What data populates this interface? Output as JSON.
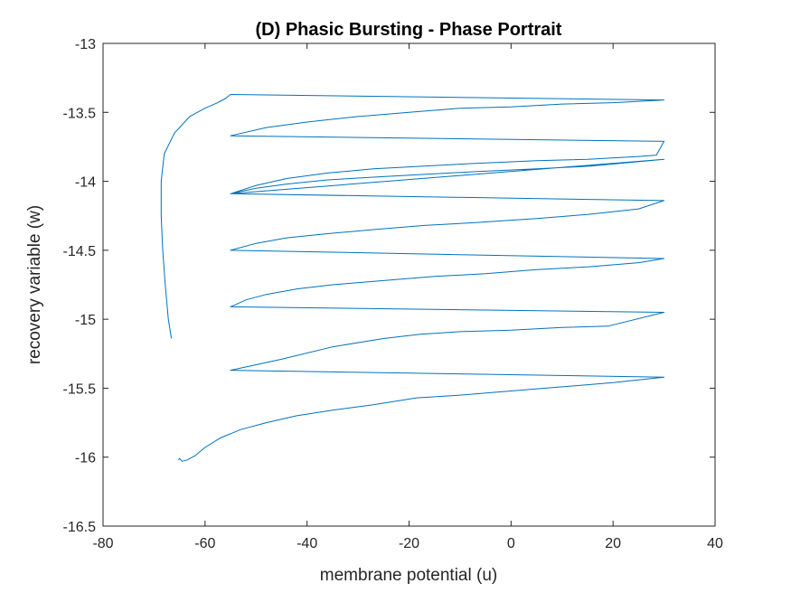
{
  "chart_data": {
    "type": "line",
    "title": "(D) Phasic Bursting - Phase Portrait",
    "xlabel": "membrane potential (u)",
    "ylabel": "recovery variable (w)",
    "xlim": [
      -80,
      40
    ],
    "ylim": [
      -16.5,
      -13
    ],
    "xticks": [
      -80,
      -60,
      -40,
      -20,
      0,
      20,
      40
    ],
    "yticks": [
      -13,
      -13.5,
      -14,
      -14.5,
      -15,
      -15.5,
      -16,
      -16.5
    ],
    "xtick_labels": [
      "-80",
      "-60",
      "-40",
      "-20",
      "0",
      "20",
      "40"
    ],
    "ytick_labels": [
      "-13",
      "-13.5",
      "-14",
      "-14.5",
      "-15",
      "-15.5",
      "-16",
      "-16.5"
    ],
    "grid": false,
    "line_color": "#0072BD",
    "series": [
      {
        "x": [
          -65.2,
          -65.0,
          -64.5,
          -63.5,
          -62.0,
          -60.0,
          -57.0,
          -53.0,
          -48.0,
          -42.0,
          -35.0,
          -27.0,
          -18.5,
          -10.0,
          0.0,
          10.0,
          20.0,
          30.0,
          -55.0,
          -45.0,
          -35.0,
          -25.0,
          -18.0,
          -10.0,
          0.0,
          10.0,
          19.0,
          30.0,
          -55.0,
          -52.0,
          -48.0,
          -42.0,
          -35.0,
          -25.0,
          -15.0,
          -5.0,
          5.0,
          15.0,
          25.0,
          30.0,
          -55.0,
          -50.0,
          -44.0,
          -36.0,
          -27.0,
          -17.0,
          -7.0,
          5.0,
          15.0,
          25.0,
          30.0,
          -55.0,
          -50.0,
          -44.0,
          -36.0,
          -27.0,
          -17.0,
          -7.0,
          5.0,
          15.5,
          30.0,
          -55.0,
          -50.0,
          -44.0,
          -36.0,
          -27.0,
          -17.0,
          -7.0,
          5.0,
          15.0,
          25.0,
          28.5,
          30.0,
          28.5,
          -55.0,
          -48.0,
          -40.0,
          -30.0,
          -20.0,
          -10.0,
          0.0,
          10.0,
          20.0,
          30.0,
          -55.0,
          -55.0,
          -56.0,
          -57.5,
          -60.0,
          -63.0,
          -66.0,
          -68.0,
          -68.6,
          -68.6,
          -68.3,
          -67.8,
          -67.2,
          -66.6
        ],
        "y": [
          -16.02,
          -16.01,
          -16.03,
          -16.02,
          -15.99,
          -15.93,
          -15.86,
          -15.8,
          -15.75,
          -15.7,
          -15.66,
          -15.62,
          -15.57,
          -15.55,
          -15.52,
          -15.49,
          -15.46,
          -15.42,
          -15.37,
          -15.29,
          -15.2,
          -15.14,
          -15.11,
          -15.09,
          -15.08,
          -15.06,
          -15.05,
          -14.95,
          -14.91,
          -14.86,
          -14.82,
          -14.78,
          -14.75,
          -14.72,
          -14.69,
          -14.67,
          -14.64,
          -14.62,
          -14.59,
          -14.56,
          -14.5,
          -14.45,
          -14.41,
          -14.38,
          -14.35,
          -14.32,
          -14.3,
          -14.27,
          -14.24,
          -14.2,
          -14.14,
          -14.09,
          -14.05,
          -14.02,
          -13.99,
          -13.97,
          -13.95,
          -13.93,
          -13.91,
          -13.89,
          -13.84,
          -14.09,
          -14.03,
          -13.98,
          -13.94,
          -13.91,
          -13.89,
          -13.87,
          -13.85,
          -13.84,
          -13.82,
          -13.81,
          -13.71,
          -13.71,
          -13.67,
          -13.61,
          -13.57,
          -13.53,
          -13.5,
          -13.47,
          -13.46,
          -13.44,
          -13.43,
          -13.41,
          -13.37,
          -13.37,
          -13.4,
          -13.43,
          -13.47,
          -13.53,
          -13.65,
          -13.8,
          -14.0,
          -14.25,
          -14.5,
          -14.75,
          -15.0,
          -15.14
        ]
      }
    ]
  }
}
